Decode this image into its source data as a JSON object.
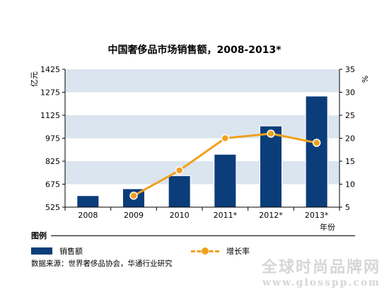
{
  "chart_data": {
    "type": "bar",
    "title": "中国奢侈品市场销售额，2008-2013*",
    "categories": [
      "2008",
      "2009",
      "2010",
      "2011*",
      "2012*",
      "2013*"
    ],
    "series": [
      {
        "name": "销售额",
        "type": "bar",
        "axis": "left",
        "values": [
          600,
          645,
          730,
          870,
          1055,
          1250
        ],
        "color": "#0a3d7a"
      },
      {
        "name": "增长率",
        "type": "line",
        "axis": "right",
        "values": [
          null,
          7.5,
          13,
          20,
          21,
          19
        ],
        "color": "#f0a020"
      }
    ],
    "left_axis": {
      "label": "亿元",
      "range": [
        525,
        1425
      ],
      "ticks": [
        "525",
        "675",
        "825",
        "975",
        "1125",
        "1275",
        "1425"
      ]
    },
    "right_axis": {
      "label": "%",
      "range": [
        5,
        35
      ],
      "ticks": [
        "5",
        "10",
        "15",
        "20",
        "25",
        "30",
        "35"
      ]
    },
    "xlabel": "年份"
  },
  "legend": {
    "heading": "图例",
    "bar_label": "销售额",
    "line_label": "增长率"
  },
  "source": "数据来源：世界奢侈品协会，华通行业研究",
  "watermark": {
    "text": "全球时尚品牌网",
    "url": "www.glosspp.com"
  }
}
